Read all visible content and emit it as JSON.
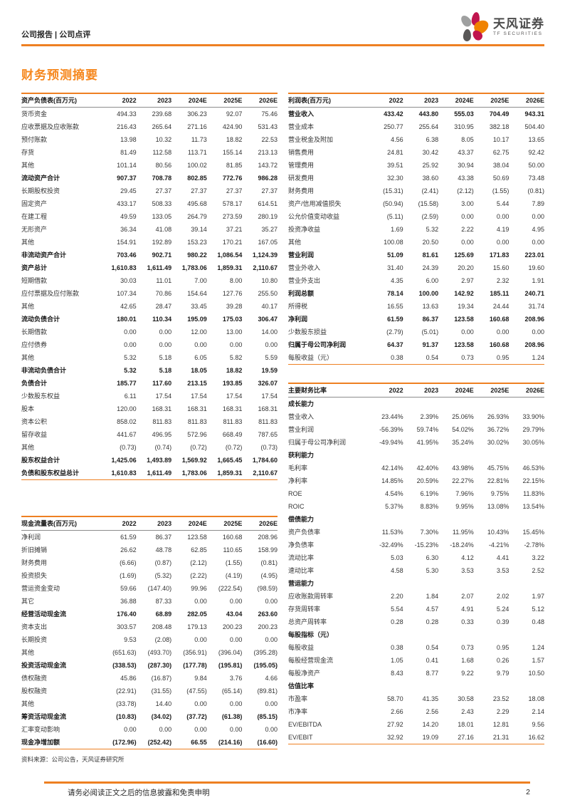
{
  "page": {
    "header_left": "公司报告 | 公司点评",
    "section_title": "财务预测摘要",
    "source_note": "资料来源：公司公告，天风证券研究所",
    "footer_disclaimer": "请务必阅读正文之后的信息披露和免责申明",
    "page_number": "2"
  },
  "brand": {
    "name_cn": "天风证券",
    "name_en": "TF SECURITIES"
  },
  "colors": {
    "accent": "#EE8022",
    "title_orange": "#F6881F",
    "logo_orange": "#F08300",
    "logo_crimson": "#C0154E",
    "logo_gray": "#9FA0A0",
    "logo_darkgray": "#595757"
  },
  "years": [
    "2022",
    "2023",
    "2024E",
    "2025E",
    "2026E"
  ],
  "tables": {
    "balance_sheet": {
      "title": "资产负债表(百万元)",
      "rows": [
        {
          "label": "货币资金",
          "values": [
            "494.33",
            "239.68",
            "306.23",
            "92.07",
            "75.46"
          ]
        },
        {
          "label": "应收票据及应收账款",
          "values": [
            "216.43",
            "265.64",
            "271.16",
            "424.90",
            "531.43"
          ]
        },
        {
          "label": "预付账款",
          "values": [
            "13.98",
            "10.32",
            "11.73",
            "18.82",
            "22.53"
          ]
        },
        {
          "label": "存货",
          "values": [
            "81.49",
            "112.58",
            "113.71",
            "155.14",
            "213.13"
          ]
        },
        {
          "label": "其他",
          "values": [
            "101.14",
            "80.56",
            "100.02",
            "81.85",
            "143.72"
          ]
        },
        {
          "label": "流动资产合计",
          "b": true,
          "values": [
            "907.37",
            "708.78",
            "802.85",
            "772.76",
            "986.28"
          ]
        },
        {
          "label": "长期股权投资",
          "values": [
            "29.45",
            "27.37",
            "27.37",
            "27.37",
            "27.37"
          ]
        },
        {
          "label": "固定资产",
          "values": [
            "433.17",
            "508.33",
            "495.68",
            "578.17",
            "614.51"
          ]
        },
        {
          "label": "在建工程",
          "values": [
            "49.59",
            "133.05",
            "264.79",
            "273.59",
            "280.19"
          ]
        },
        {
          "label": "无形资产",
          "values": [
            "36.34",
            "41.08",
            "39.14",
            "37.21",
            "35.27"
          ]
        },
        {
          "label": "其他",
          "values": [
            "154.91",
            "192.89",
            "153.23",
            "170.21",
            "167.05"
          ]
        },
        {
          "label": "非流动资产合计",
          "b": true,
          "values": [
            "703.46",
            "902.71",
            "980.22",
            "1,086.54",
            "1,124.39"
          ]
        },
        {
          "label": "资产总计",
          "b": true,
          "values": [
            "1,610.83",
            "1,611.49",
            "1,783.06",
            "1,859.31",
            "2,110.67"
          ]
        },
        {
          "label": "短期借款",
          "values": [
            "30.03",
            "11.01",
            "7.00",
            "8.00",
            "10.80"
          ]
        },
        {
          "label": "应付票据及应付账款",
          "values": [
            "107.34",
            "70.86",
            "154.64",
            "127.76",
            "255.50"
          ]
        },
        {
          "label": "其他",
          "values": [
            "42.65",
            "28.47",
            "33.45",
            "39.28",
            "40.17"
          ]
        },
        {
          "label": "流动负债合计",
          "b": true,
          "values": [
            "180.01",
            "110.34",
            "195.09",
            "175.03",
            "306.47"
          ]
        },
        {
          "label": "长期借款",
          "values": [
            "0.00",
            "0.00",
            "12.00",
            "13.00",
            "14.00"
          ]
        },
        {
          "label": "应付债券",
          "values": [
            "0.00",
            "0.00",
            "0.00",
            "0.00",
            "0.00"
          ]
        },
        {
          "label": "其他",
          "values": [
            "5.32",
            "5.18",
            "6.05",
            "5.82",
            "5.59"
          ]
        },
        {
          "label": "非流动负债合计",
          "b": true,
          "values": [
            "5.32",
            "5.18",
            "18.05",
            "18.82",
            "19.59"
          ]
        },
        {
          "label": "负债合计",
          "b": true,
          "values": [
            "185.77",
            "117.60",
            "213.15",
            "193.85",
            "326.07"
          ]
        },
        {
          "label": "少数股东权益",
          "values": [
            "6.11",
            "17.54",
            "17.54",
            "17.54",
            "17.54"
          ]
        },
        {
          "label": "股本",
          "values": [
            "120.00",
            "168.31",
            "168.31",
            "168.31",
            "168.31"
          ]
        },
        {
          "label": "资本公积",
          "values": [
            "858.02",
            "811.83",
            "811.83",
            "811.83",
            "811.83"
          ]
        },
        {
          "label": "留存收益",
          "values": [
            "441.67",
            "496.95",
            "572.96",
            "668.49",
            "787.65"
          ]
        },
        {
          "label": "其他",
          "values": [
            "(0.73)",
            "(0.74)",
            "(0.72)",
            "(0.72)",
            "(0.73)"
          ]
        },
        {
          "label": "股东权益合计",
          "b": true,
          "values": [
            "1,425.06",
            "1,493.89",
            "1,569.92",
            "1,665.45",
            "1,784.60"
          ]
        },
        {
          "label": "负债和股东权益总计",
          "b": true,
          "values": [
            "1,610.83",
            "1,611.49",
            "1,783.06",
            "1,859.31",
            "2,110.67"
          ]
        }
      ]
    },
    "cashflow": {
      "title": "现金流量表(百万元)",
      "rows": [
        {
          "label": "净利润",
          "values": [
            "61.59",
            "86.37",
            "123.58",
            "160.68",
            "208.96"
          ]
        },
        {
          "label": "折旧摊销",
          "values": [
            "26.62",
            "48.78",
            "62.85",
            "110.65",
            "158.99"
          ]
        },
        {
          "label": "财务费用",
          "values": [
            "(6.66)",
            "(0.87)",
            "(2.12)",
            "(1.55)",
            "(0.81)"
          ]
        },
        {
          "label": "投资损失",
          "values": [
            "(1.69)",
            "(5.32)",
            "(2.22)",
            "(4.19)",
            "(4.95)"
          ]
        },
        {
          "label": "营运资金变动",
          "values": [
            "59.66",
            "(147.40)",
            "99.96",
            "(222.54)",
            "(98.59)"
          ]
        },
        {
          "label": "其它",
          "values": [
            "36.88",
            "87.33",
            "0.00",
            "0.00",
            "0.00"
          ]
        },
        {
          "label": "经营活动现金流",
          "b": true,
          "values": [
            "176.40",
            "68.89",
            "282.05",
            "43.04",
            "263.60"
          ]
        },
        {
          "label": "资本支出",
          "values": [
            "303.57",
            "208.48",
            "179.13",
            "200.23",
            "200.23"
          ]
        },
        {
          "label": "长期投资",
          "values": [
            "9.53",
            "(2.08)",
            "0.00",
            "0.00",
            "0.00"
          ]
        },
        {
          "label": "其他",
          "values": [
            "(651.63)",
            "(493.70)",
            "(356.91)",
            "(396.04)",
            "(395.28)"
          ]
        },
        {
          "label": "投资活动现金流",
          "b": true,
          "values": [
            "(338.53)",
            "(287.30)",
            "(177.78)",
            "(195.81)",
            "(195.05)"
          ]
        },
        {
          "label": "债权融资",
          "values": [
            "45.86",
            "(16.87)",
            "9.84",
            "3.76",
            "4.66"
          ]
        },
        {
          "label": "股权融资",
          "values": [
            "(22.91)",
            "(31.55)",
            "(47.55)",
            "(65.14)",
            "(89.81)"
          ]
        },
        {
          "label": "其他",
          "values": [
            "(33.78)",
            "14.40",
            "0.00",
            "0.00",
            "0.00"
          ]
        },
        {
          "label": "筹资活动现金流",
          "b": true,
          "values": [
            "(10.83)",
            "(34.02)",
            "(37.72)",
            "(61.38)",
            "(85.15)"
          ]
        },
        {
          "label": "汇率变动影响",
          "values": [
            "0.00",
            "0.00",
            "0.00",
            "0.00",
            "0.00"
          ]
        },
        {
          "label": "现金净增加额",
          "b": true,
          "values": [
            "(172.96)",
            "(252.42)",
            "66.55",
            "(214.16)",
            "(16.60)"
          ]
        }
      ]
    },
    "income": {
      "title": "利润表(百万元)",
      "rows": [
        {
          "label": "营业收入",
          "b": true,
          "values": [
            "433.42",
            "443.80",
            "555.03",
            "704.49",
            "943.31"
          ]
        },
        {
          "label": "营业成本",
          "values": [
            "250.77",
            "255.64",
            "310.95",
            "382.18",
            "504.40"
          ]
        },
        {
          "label": "营业税金及附加",
          "values": [
            "4.56",
            "6.38",
            "8.05",
            "10.17",
            "13.65"
          ]
        },
        {
          "label": "销售费用",
          "values": [
            "24.81",
            "30.42",
            "43.37",
            "62.75",
            "92.42"
          ]
        },
        {
          "label": "管理费用",
          "values": [
            "39.51",
            "25.92",
            "30.94",
            "38.04",
            "50.00"
          ]
        },
        {
          "label": "研发费用",
          "values": [
            "32.30",
            "38.60",
            "43.38",
            "50.69",
            "73.48"
          ]
        },
        {
          "label": "财务费用",
          "values": [
            "(15.31)",
            "(2.41)",
            "(2.12)",
            "(1.55)",
            "(0.81)"
          ]
        },
        {
          "label": "资产/信用减值损失",
          "values": [
            "(50.94)",
            "(15.58)",
            "3.00",
            "5.44",
            "7.89"
          ]
        },
        {
          "label": "公允价值变动收益",
          "values": [
            "(5.11)",
            "(2.59)",
            "0.00",
            "0.00",
            "0.00"
          ]
        },
        {
          "label": "投资净收益",
          "values": [
            "1.69",
            "5.32",
            "2.22",
            "4.19",
            "4.95"
          ]
        },
        {
          "label": "其他",
          "values": [
            "100.08",
            "20.50",
            "0.00",
            "0.00",
            "0.00"
          ]
        },
        {
          "label": "营业利润",
          "b": true,
          "values": [
            "51.09",
            "81.61",
            "125.69",
            "171.83",
            "223.01"
          ]
        },
        {
          "label": "营业外收入",
          "values": [
            "31.40",
            "24.39",
            "20.20",
            "15.60",
            "19.60"
          ]
        },
        {
          "label": "营业外支出",
          "values": [
            "4.35",
            "6.00",
            "2.97",
            "2.32",
            "1.91"
          ]
        },
        {
          "label": "利润总额",
          "b": true,
          "values": [
            "78.14",
            "100.00",
            "142.92",
            "185.11",
            "240.71"
          ]
        },
        {
          "label": "所得税",
          "values": [
            "16.55",
            "13.63",
            "19.34",
            "24.44",
            "31.74"
          ]
        },
        {
          "label": "净利润",
          "b": true,
          "values": [
            "61.59",
            "86.37",
            "123.58",
            "160.68",
            "208.96"
          ]
        },
        {
          "label": "少数股东损益",
          "values": [
            "(2.79)",
            "(5.01)",
            "0.00",
            "0.00",
            "0.00"
          ]
        },
        {
          "label": "归属于母公司净利润",
          "b": true,
          "values": [
            "64.37",
            "91.37",
            "123.58",
            "160.68",
            "208.96"
          ]
        },
        {
          "label": "每股收益（元）",
          "values": [
            "0.38",
            "0.54",
            "0.73",
            "0.95",
            "1.24"
          ]
        }
      ]
    },
    "ratios": {
      "title": "主要财务比率",
      "rows": [
        {
          "label": "成长能力",
          "section": true
        },
        {
          "label": "营业收入",
          "values": [
            "23.44%",
            "2.39%",
            "25.06%",
            "26.93%",
            "33.90%"
          ]
        },
        {
          "label": "营业利润",
          "values": [
            "-56.39%",
            "59.74%",
            "54.02%",
            "36.72%",
            "29.79%"
          ]
        },
        {
          "label": "归属于母公司净利润",
          "values": [
            "-49.94%",
            "41.95%",
            "35.24%",
            "30.02%",
            "30.05%"
          ]
        },
        {
          "label": "获利能力",
          "section": true
        },
        {
          "label": "毛利率",
          "values": [
            "42.14%",
            "42.40%",
            "43.98%",
            "45.75%",
            "46.53%"
          ]
        },
        {
          "label": "净利率",
          "values": [
            "14.85%",
            "20.59%",
            "22.27%",
            "22.81%",
            "22.15%"
          ]
        },
        {
          "label": "ROE",
          "values": [
            "4.54%",
            "6.19%",
            "7.96%",
            "9.75%",
            "11.83%"
          ]
        },
        {
          "label": "ROIC",
          "values": [
            "5.37%",
            "8.83%",
            "9.95%",
            "13.08%",
            "13.54%"
          ]
        },
        {
          "label": "偿债能力",
          "section": true
        },
        {
          "label": "资产负债率",
          "values": [
            "11.53%",
            "7.30%",
            "11.95%",
            "10.43%",
            "15.45%"
          ]
        },
        {
          "label": "净负债率",
          "values": [
            "-32.49%",
            "-15.23%",
            "-18.24%",
            "-4.21%",
            "-2.78%"
          ]
        },
        {
          "label": "流动比率",
          "values": [
            "5.03",
            "6.30",
            "4.12",
            "4.41",
            "3.22"
          ]
        },
        {
          "label": "速动比率",
          "values": [
            "4.58",
            "5.30",
            "3.53",
            "3.53",
            "2.52"
          ]
        },
        {
          "label": "营运能力",
          "section": true
        },
        {
          "label": "应收账款周转率",
          "values": [
            "2.20",
            "1.84",
            "2.07",
            "2.02",
            "1.97"
          ]
        },
        {
          "label": "存货周转率",
          "values": [
            "5.54",
            "4.57",
            "4.91",
            "5.24",
            "5.12"
          ]
        },
        {
          "label": "总资产周转率",
          "values": [
            "0.28",
            "0.28",
            "0.33",
            "0.39",
            "0.48"
          ]
        },
        {
          "label": "每股指标（元）",
          "section": true
        },
        {
          "label": "每股收益",
          "values": [
            "0.38",
            "0.54",
            "0.73",
            "0.95",
            "1.24"
          ]
        },
        {
          "label": "每股经营现金流",
          "values": [
            "1.05",
            "0.41",
            "1.68",
            "0.26",
            "1.57"
          ]
        },
        {
          "label": "每股净资产",
          "values": [
            "8.43",
            "8.77",
            "9.22",
            "9.79",
            "10.50"
          ]
        },
        {
          "label": "估值比率",
          "section": true
        },
        {
          "label": "市盈率",
          "values": [
            "58.70",
            "41.35",
            "30.58",
            "23.52",
            "18.08"
          ]
        },
        {
          "label": "市净率",
          "values": [
            "2.66",
            "2.56",
            "2.43",
            "2.29",
            "2.14"
          ]
        },
        {
          "label": "EV/EBITDA",
          "values": [
            "27.92",
            "14.20",
            "18.01",
            "12.81",
            "9.56"
          ]
        },
        {
          "label": "EV/EBIT",
          "values": [
            "32.92",
            "19.09",
            "27.16",
            "21.31",
            "16.62"
          ]
        }
      ]
    }
  }
}
